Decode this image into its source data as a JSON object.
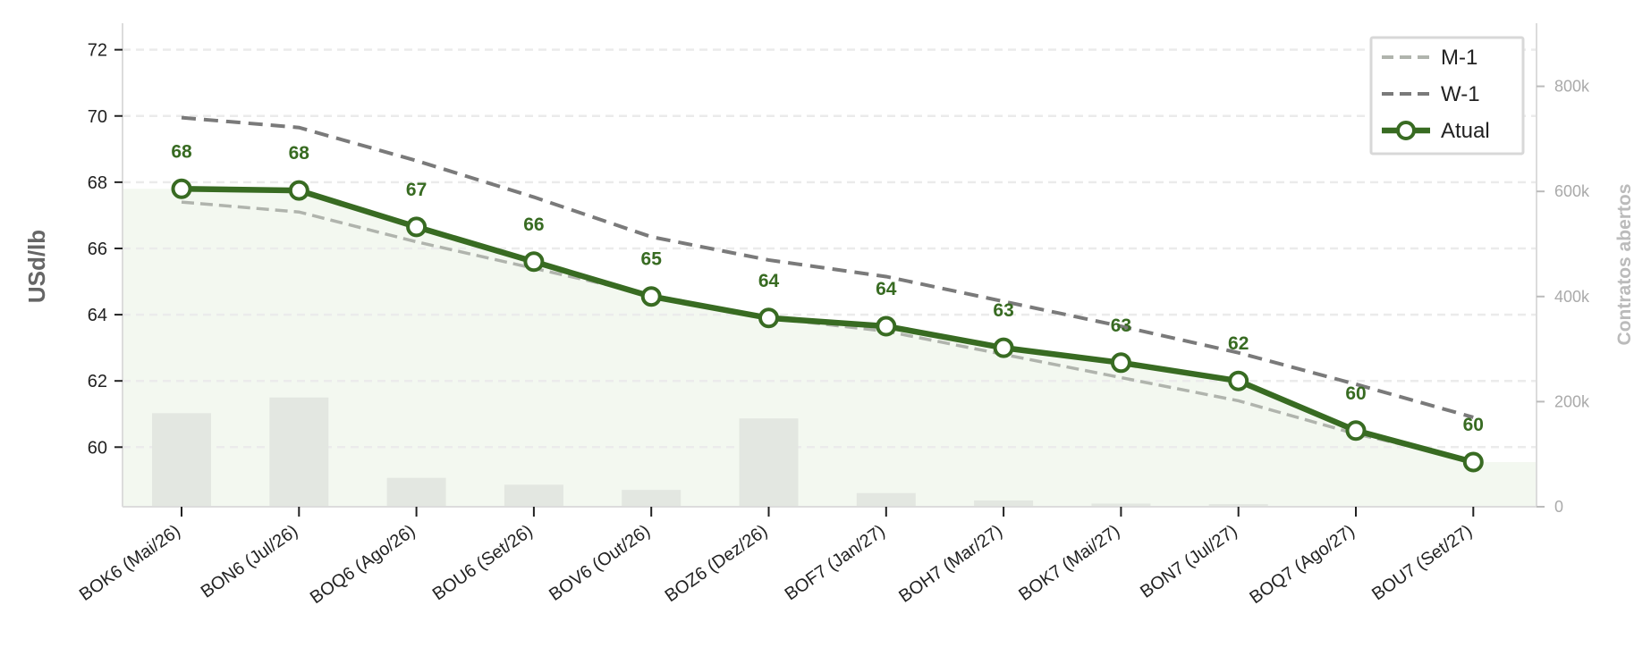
{
  "chart_data": {
    "type": "line",
    "categories": [
      "BOK6 (Mai/26)",
      "BON6 (Jul/26)",
      "BOQ6 (Ago/26)",
      "BOU6 (Set/26)",
      "BOV6 (Out/26)",
      "BOZ6 (Dez/26)",
      "BOF7 (Jan/27)",
      "BOH7 (Mar/27)",
      "BOK7 (Mai/27)",
      "BON7 (Jul/27)",
      "BOQ7 (Ago/27)",
      "BOU7 (Set/27)"
    ],
    "ylabel": "USd/lb",
    "y2label": "Contratos abertos",
    "ylim": [
      58.2,
      72.8
    ],
    "y_ticks": [
      60,
      62,
      64,
      66,
      68,
      70,
      72
    ],
    "y2lim": [
      0,
      920000
    ],
    "y2_ticks": [
      0,
      200000,
      400000,
      600000,
      800000
    ],
    "y2_tick_labels": [
      "0",
      "200k",
      "400k",
      "600k",
      "800k"
    ],
    "grid": true,
    "legend_position": "top-right",
    "series": [
      {
        "name": "M-1",
        "style": "dashed",
        "color": "#b0b4ad",
        "values": [
          67.4,
          67.1,
          66.2,
          65.4,
          64.6,
          63.9,
          63.5,
          62.8,
          62.1,
          61.4,
          60.4,
          59.6
        ]
      },
      {
        "name": "W-1",
        "style": "dashed",
        "color": "#7a7a7a",
        "values": [
          69.95,
          69.65,
          68.65,
          67.55,
          66.35,
          65.65,
          65.15,
          64.4,
          63.65,
          62.85,
          61.9,
          60.9
        ]
      },
      {
        "name": "Atual",
        "style": "solid-markers",
        "color": "#386b22",
        "values": [
          67.8,
          67.75,
          66.65,
          65.6,
          64.55,
          63.9,
          63.65,
          63.0,
          62.55,
          62.0,
          60.5,
          59.55
        ]
      }
    ],
    "data_labels": [
      "68",
      "68",
      "67",
      "66",
      "65",
      "64",
      "64",
      "63",
      "63",
      "62",
      "60",
      "60"
    ],
    "open_interest": [
      178000,
      208000,
      55000,
      42000,
      32000,
      168000,
      26000,
      12000,
      6000,
      5000,
      0,
      0
    ]
  },
  "colors": {
    "accent": "#386b22",
    "area_fill": "#f3f8f0",
    "bar_fill": "#e3e7e1",
    "grid": "#ebebeb"
  }
}
